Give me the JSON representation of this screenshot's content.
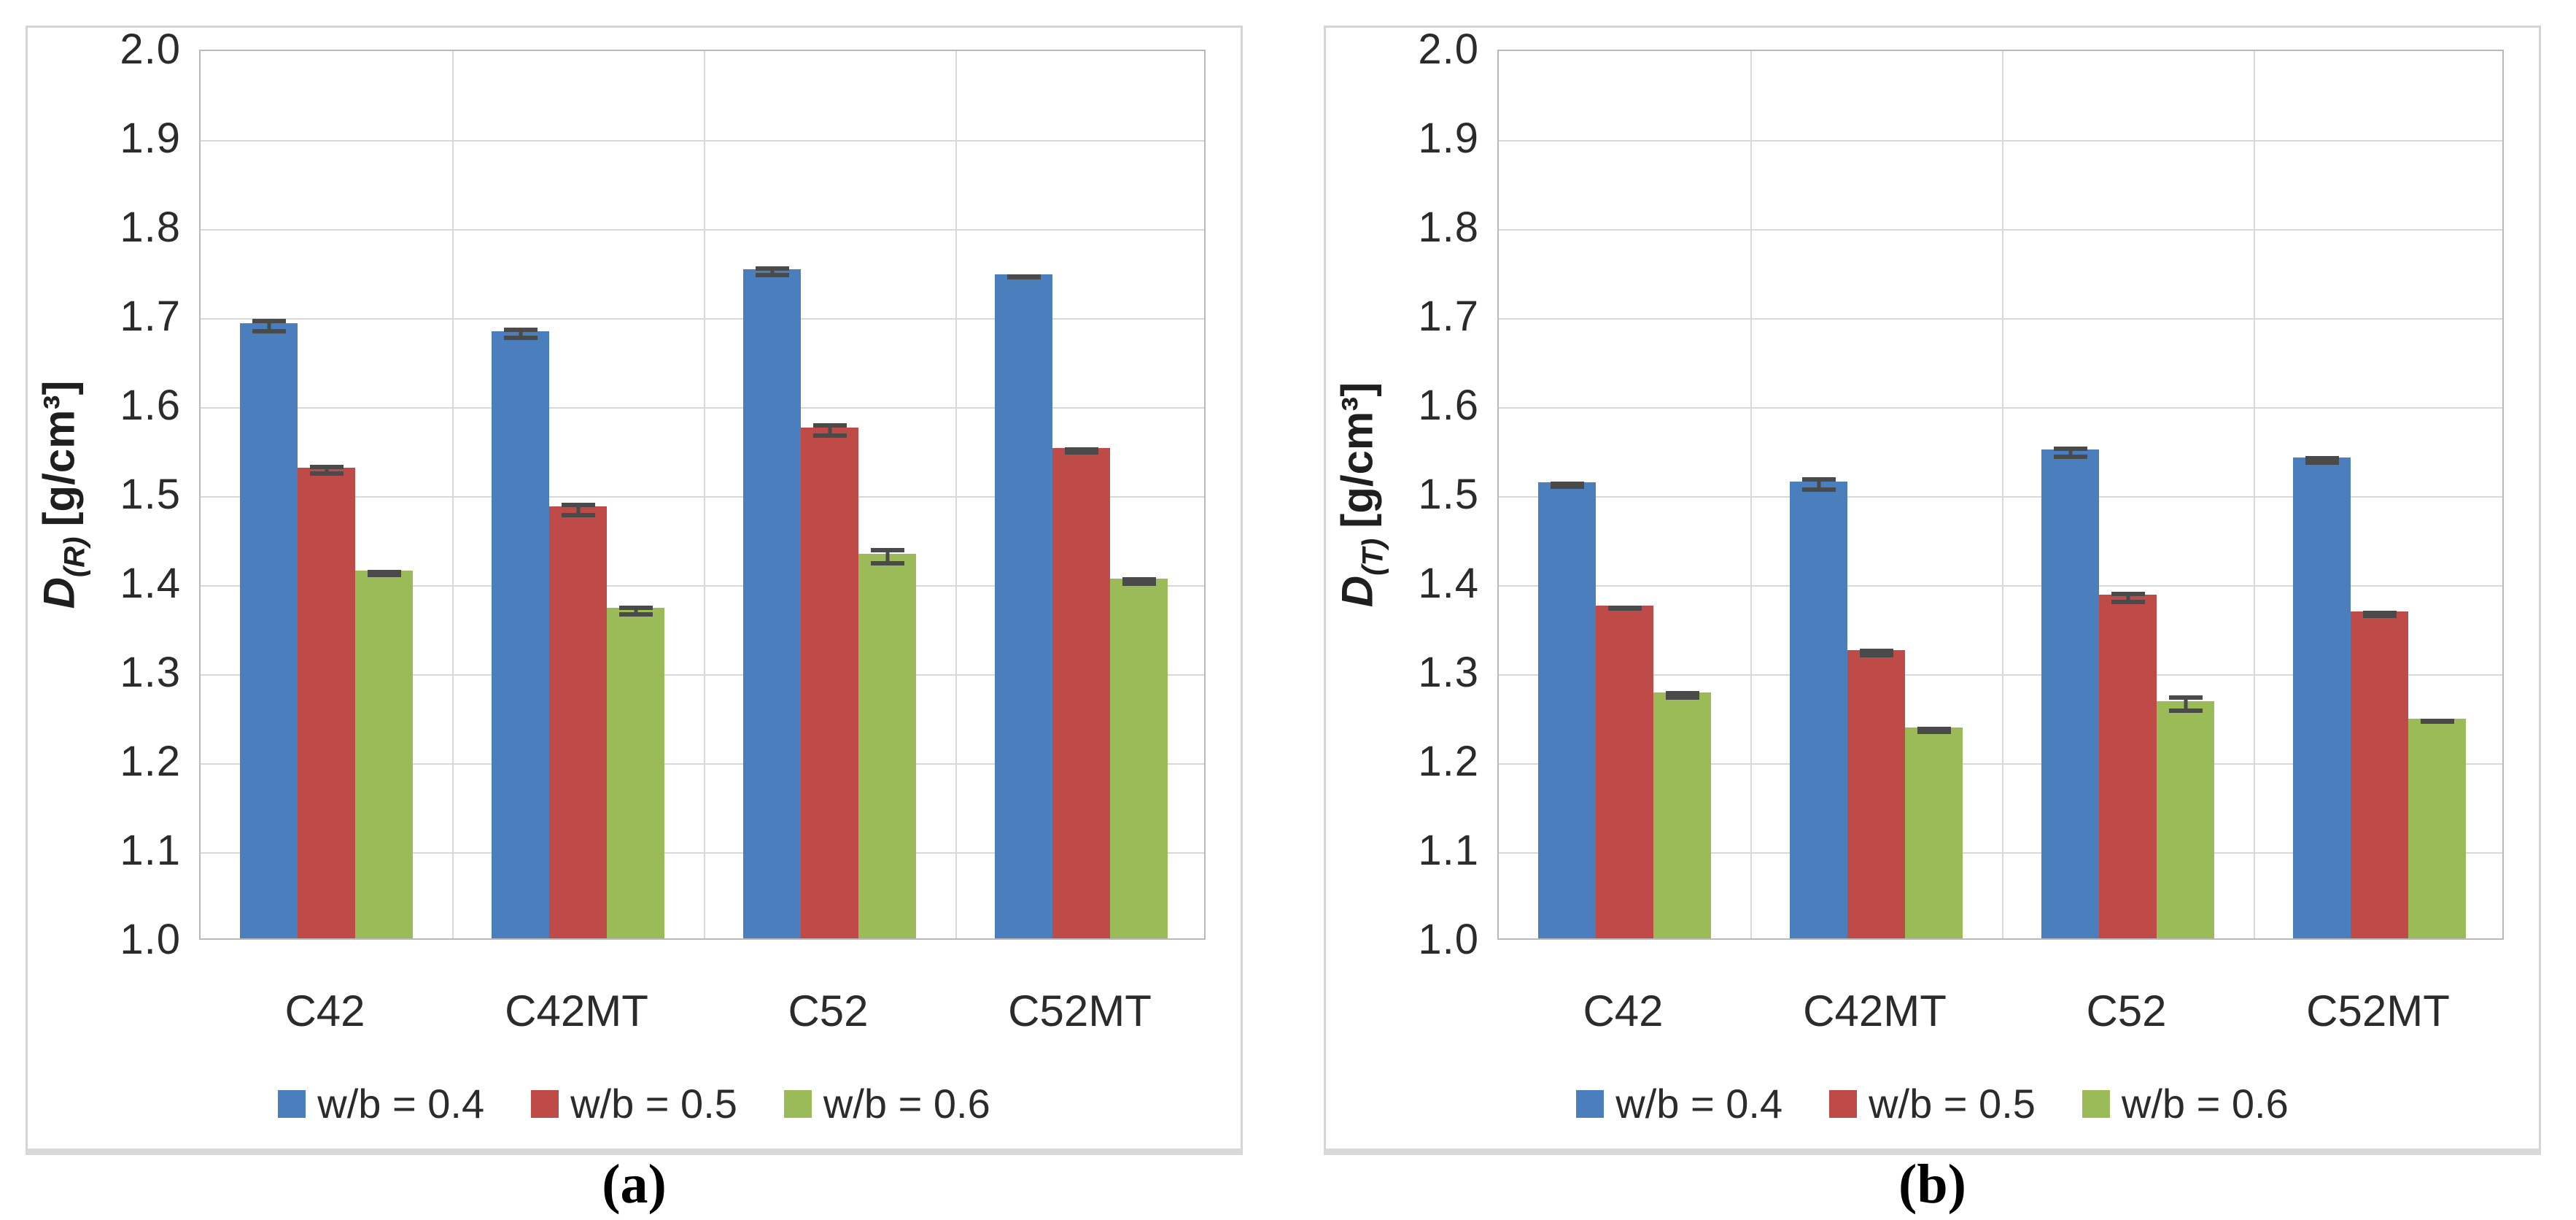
{
  "figure": {
    "background": "#ffffff",
    "error_bar_color": "#4a4a4a",
    "gridline_color": "#d8d8d8",
    "frame_color": "#b9b9b9",
    "panel_border_color": "#d5d5d5"
  },
  "chart_data": [
    {
      "type": "bar",
      "panel": "a",
      "caption": "(a)",
      "ylabel_symbol": "D",
      "ylabel_subscript": "(R)",
      "ylabel_unit": "[g/cm³]",
      "ylabel_text": "D(R) [g/cm³]",
      "xlabel": "",
      "categories": [
        "C42",
        "C42MT",
        "C52",
        "C52MT"
      ],
      "series": [
        {
          "name": "w/b = 0.4",
          "color": "#4A7EBC",
          "values": [
            1.691,
            1.682,
            1.752,
            1.746
          ],
          "errors": [
            0.008,
            0.007,
            0.006,
            0.003
          ]
        },
        {
          "name": "w/b = 0.5",
          "color": "#BF4B48",
          "values": [
            1.529,
            1.485,
            1.574,
            1.551
          ],
          "errors": [
            0.006,
            0.008,
            0.008,
            0.004
          ]
        },
        {
          "name": "w/b = 0.6",
          "color": "#9BBA58",
          "values": [
            1.413,
            1.371,
            1.432,
            1.404
          ],
          "errors": [
            0.004,
            0.006,
            0.01,
            0.005
          ]
        }
      ],
      "ylim": [
        1.0,
        2.0
      ],
      "ytick_step": 0.1,
      "ytick_labels": [
        "2.0",
        "1.9",
        "1.8",
        "1.7",
        "1.6",
        "1.5",
        "1.4",
        "1.3",
        "1.2",
        "1.1",
        "1.0"
      ],
      "grid": "horizontal and vertical category separators",
      "legend_position": "bottom",
      "error_bars": true
    },
    {
      "type": "bar",
      "panel": "b",
      "caption": "(b)",
      "ylabel_symbol": "D",
      "ylabel_subscript": "(T)",
      "ylabel_unit": "[g/cm³]",
      "ylabel_text": "D(T) [g/cm³]",
      "xlabel": "",
      "categories": [
        "C42",
        "C42MT",
        "C52",
        "C52MT"
      ],
      "series": [
        {
          "name": "w/b = 0.4",
          "color": "#4A7EBC",
          "values": [
            1.512,
            1.513,
            1.549,
            1.54
          ],
          "errors": [
            0.004,
            0.008,
            0.007,
            0.005
          ]
        },
        {
          "name": "w/b = 0.5",
          "color": "#BF4B48",
          "values": [
            1.374,
            1.324,
            1.386,
            1.367
          ],
          "errors": [
            0.003,
            0.005,
            0.007,
            0.004
          ]
        },
        {
          "name": "w/b = 0.6",
          "color": "#9BBA58",
          "values": [
            1.276,
            1.237,
            1.266,
            1.247
          ],
          "errors": [
            0.005,
            0.004,
            0.01,
            0.003
          ]
        }
      ],
      "ylim": [
        1.0,
        2.0
      ],
      "ytick_step": 0.1,
      "ytick_labels": [
        "2.0",
        "1.9",
        "1.8",
        "1.7",
        "1.6",
        "1.5",
        "1.4",
        "1.3",
        "1.2",
        "1.1",
        "1.0"
      ],
      "grid": "horizontal and vertical category separators",
      "legend_position": "bottom",
      "error_bars": true
    }
  ]
}
